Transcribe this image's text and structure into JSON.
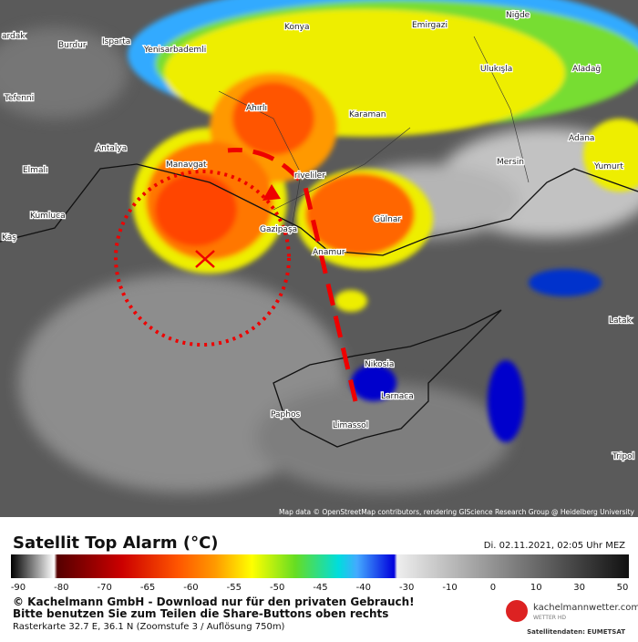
{
  "map": {
    "labels": [
      "ardak",
      "Burdur",
      "Isparta",
      "Yenisarbademli",
      "Konya",
      "Emirgazi",
      "Niğde",
      "Tefenni",
      "Ahırlı",
      "Karaman",
      "Ulukışla",
      "Aladağ",
      "Antalya",
      "Manavgat",
      "Mersin",
      "Adana",
      "Yumurt",
      "Elmalı",
      "Kumluca",
      "Gazipaşa",
      "Anamur",
      "Gülnar",
      "riveliler",
      "Kaş",
      "Latak",
      "Nikosia",
      "Larnaca",
      "Paphos",
      "Limassol",
      "Tripol"
    ],
    "attribution": "Map data © OpenStreetMap contributors, rendering GIScience Research Group @ Heidelberg University"
  },
  "legend": {
    "title": "Satellit Top Alarm (°C)",
    "date": "Di. 02.11.2021, 02:05 Uhr MEZ",
    "ticks": [
      -90,
      -80,
      -70,
      -65,
      -60,
      -55,
      -50,
      -45,
      -40,
      -30,
      -10,
      0,
      10,
      30,
      50
    ]
  },
  "footer": {
    "line1": "© Kachelmann GmbH - Download nur für den privaten Gebrauch!",
    "line2": "Bitte benutzen Sie zum Teilen die Share-Buttons oben rechts",
    "line3": "Rasterkarte 32.7 E, 36.1 N (Zoomstufe 3 / Auflösung 750m)",
    "logo": "kachelmannwetter.com",
    "logo_sub": "WETTER HD",
    "source": "Satellitendaten: EUMETSAT"
  }
}
